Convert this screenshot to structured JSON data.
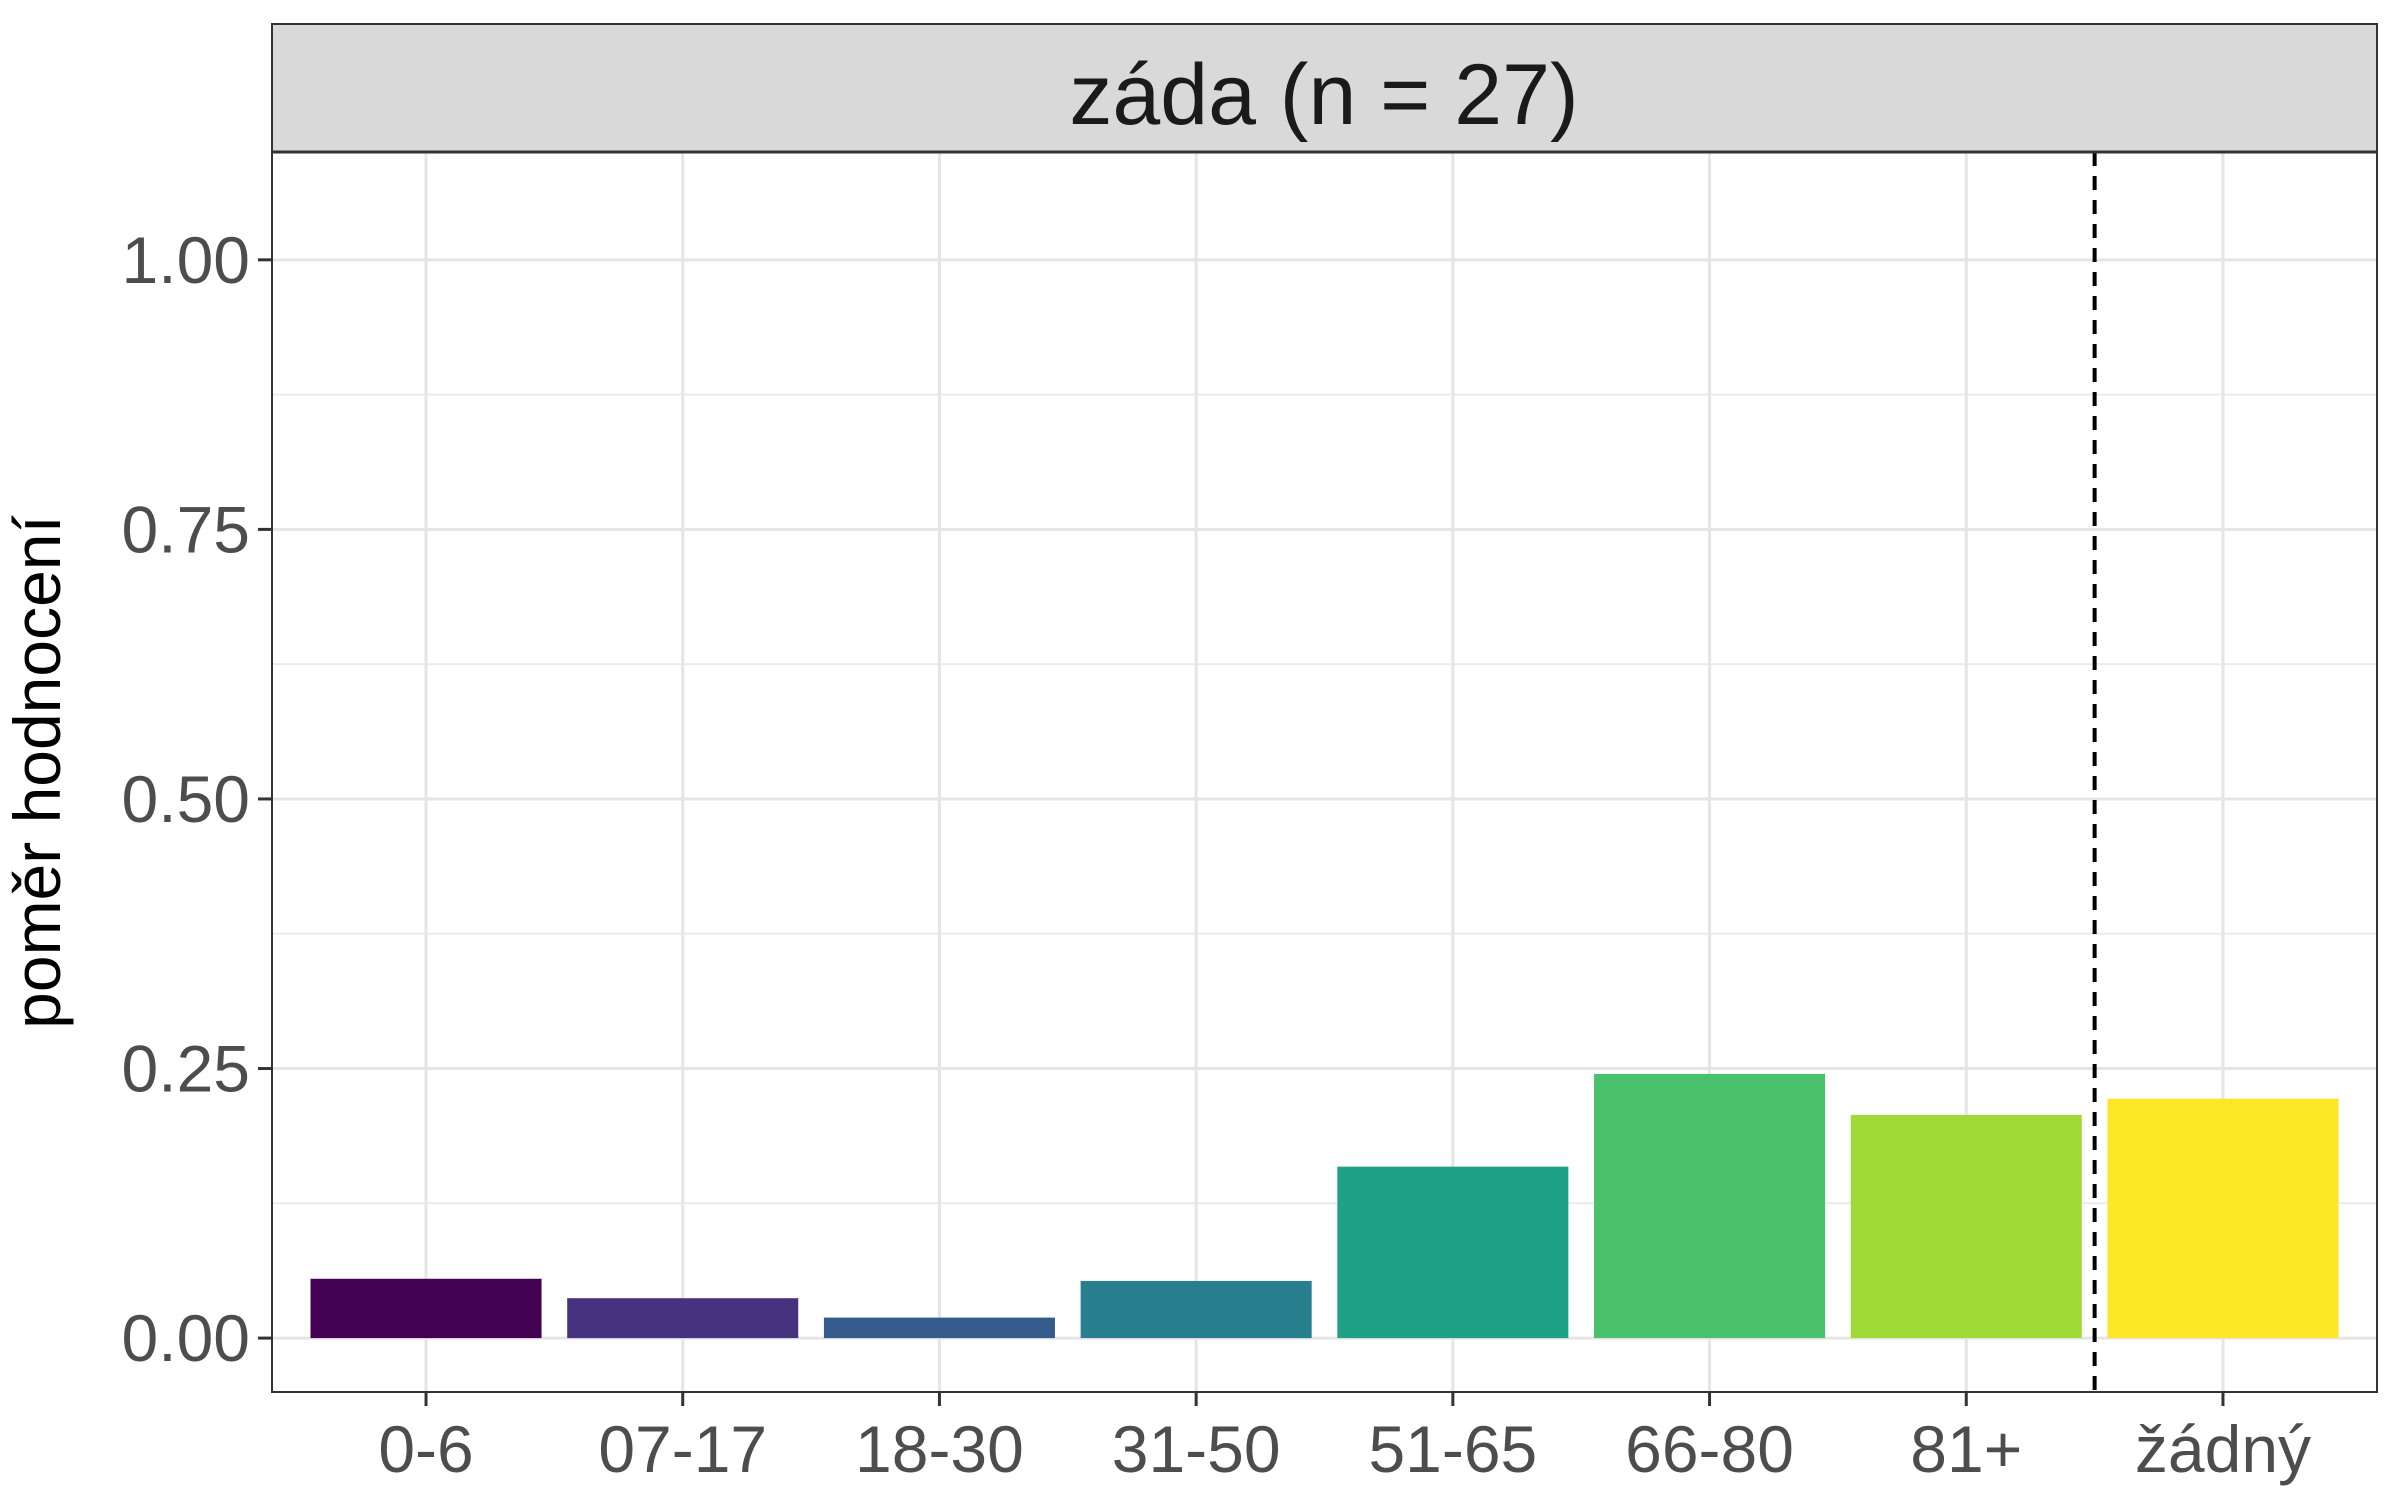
{
  "chart_data": {
    "type": "bar",
    "facet_title": "záda (n = 27)",
    "ylabel": "poměr hodnocení",
    "xlabel": "",
    "categories": [
      "0-6",
      "07-17",
      "18-30",
      "31-50",
      "51-65",
      "66-80",
      "81+",
      "žádný"
    ],
    "values": [
      0.055,
      0.037,
      0.019,
      0.053,
      0.159,
      0.245,
      0.207,
      0.222
    ],
    "colors": [
      "#440154",
      "#46327e",
      "#365c8d",
      "#277f8e",
      "#1fa187",
      "#4ac16d",
      "#a0da39",
      "#fde725"
    ],
    "ylim": [
      -0.05,
      1.1
    ],
    "yticks": [
      0,
      0.25,
      0.5,
      0.75,
      1.0
    ],
    "ytick_labels": [
      "0.00",
      "0.25",
      "0.50",
      "0.75",
      "1.00"
    ],
    "reference_line": {
      "style": "dashed",
      "between": [
        "81+",
        "žádný"
      ]
    },
    "grid": true,
    "legend": "none"
  }
}
